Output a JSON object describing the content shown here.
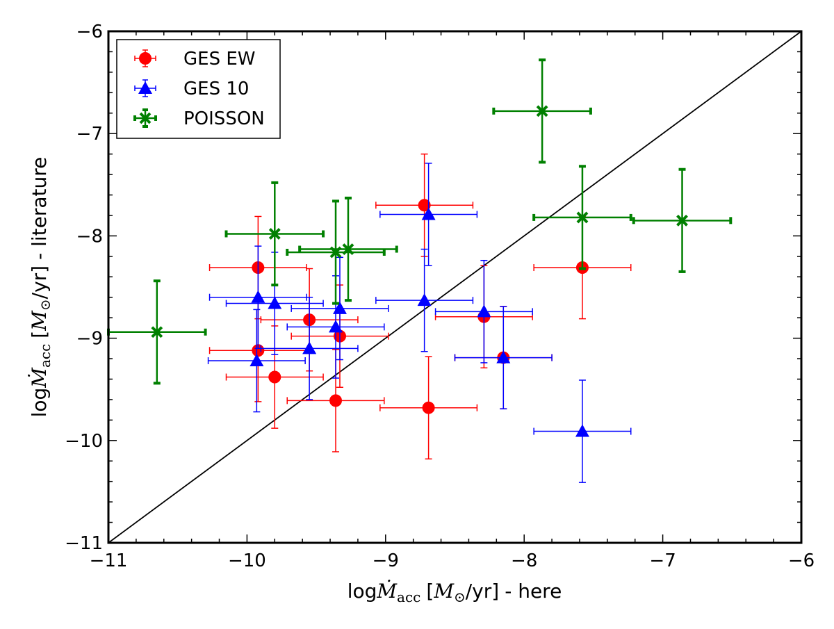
{
  "chart_data": {
    "type": "scatter",
    "title": "",
    "xlabel": {
      "prefix": "log",
      "var": "Ṁ",
      "sub": "acc",
      "bracket_open": "[",
      "unit_var": "M",
      "unit_sub": "⊙",
      "unit_rest": "/yr]",
      "suffix": "- here"
    },
    "ylabel": {
      "prefix": "log",
      "var": "Ṁ",
      "sub": "acc",
      "bracket_open": "[",
      "unit_var": "M",
      "unit_sub": "⊙",
      "unit_rest": "/yr]",
      "suffix": "- literature"
    },
    "xlim": [
      -11,
      -6
    ],
    "ylim": [
      -11,
      -6
    ],
    "xticks": [
      -11,
      -10,
      -9,
      -8,
      -7,
      -6
    ],
    "yticks": [
      -11,
      -10,
      -9,
      -8,
      -7,
      -6
    ],
    "xtick_labels": [
      "−11",
      "−10",
      "−9",
      "−8",
      "−7",
      "−6"
    ],
    "ytick_labels": [
      "−11",
      "−10",
      "−9",
      "−8",
      "−7",
      "−6"
    ],
    "grid": false,
    "legend_position": "top-left",
    "reference_line": {
      "name": "one-to-one",
      "x": [
        -11,
        -6
      ],
      "y": [
        -11,
        -6
      ],
      "color": "#000000"
    },
    "series": [
      {
        "name": "GES EW",
        "color": "#ff0000",
        "marker": "circle",
        "points": [
          {
            "x": -9.92,
            "y": -8.31,
            "xerr": 0.35,
            "yerr": 0.5
          },
          {
            "x": -9.92,
            "y": -9.12,
            "xerr": 0.35,
            "yerr": 0.5
          },
          {
            "x": -9.8,
            "y": -9.38,
            "xerr": 0.35,
            "yerr": 0.5
          },
          {
            "x": -9.55,
            "y": -8.82,
            "xerr": 0.35,
            "yerr": 0.5
          },
          {
            "x": -9.33,
            "y": -8.98,
            "xerr": 0.35,
            "yerr": 0.5
          },
          {
            "x": -9.36,
            "y": -9.61,
            "xerr": 0.35,
            "yerr": 0.5
          },
          {
            "x": -8.72,
            "y": -7.7,
            "xerr": 0.35,
            "yerr": 0.5
          },
          {
            "x": -8.69,
            "y": -9.68,
            "xerr": 0.35,
            "yerr": 0.5
          },
          {
            "x": -8.29,
            "y": -8.79,
            "xerr": 0.35,
            "yerr": 0.5
          },
          {
            "x": -8.15,
            "y": -9.19,
            "xerr": 0.35,
            "yerr": 0.5
          },
          {
            "x": -7.58,
            "y": -8.31,
            "xerr": 0.35,
            "yerr": 0.5
          }
        ]
      },
      {
        "name": "GES 10",
        "color": "#0000ff",
        "marker": "triangle",
        "points": [
          {
            "x": -9.92,
            "y": -8.6,
            "xerr": 0.35,
            "yerr": 0.5
          },
          {
            "x": -9.93,
            "y": -9.22,
            "xerr": 0.35,
            "yerr": 0.5
          },
          {
            "x": -9.8,
            "y": -8.66,
            "xerr": 0.35,
            "yerr": 0.5
          },
          {
            "x": -9.55,
            "y": -9.1,
            "xerr": 0.35,
            "yerr": 0.5
          },
          {
            "x": -9.36,
            "y": -8.89,
            "xerr": 0.35,
            "yerr": 0.5
          },
          {
            "x": -9.33,
            "y": -8.71,
            "xerr": 0.35,
            "yerr": 0.5
          },
          {
            "x": -8.72,
            "y": -8.63,
            "xerr": 0.35,
            "yerr": 0.5
          },
          {
            "x": -8.69,
            "y": -7.79,
            "xerr": 0.35,
            "yerr": 0.5
          },
          {
            "x": -8.29,
            "y": -8.74,
            "xerr": 0.35,
            "yerr": 0.5
          },
          {
            "x": -8.15,
            "y": -9.19,
            "xerr": 0.35,
            "yerr": 0.5
          },
          {
            "x": -7.58,
            "y": -9.91,
            "xerr": 0.35,
            "yerr": 0.5
          }
        ]
      },
      {
        "name": "POISSON",
        "color": "#008000",
        "marker": "x",
        "points": [
          {
            "x": -10.65,
            "y": -8.94,
            "xerr": 0.35,
            "yerr": 0.5
          },
          {
            "x": -9.8,
            "y": -7.98,
            "xerr": 0.35,
            "yerr": 0.5
          },
          {
            "x": -9.36,
            "y": -8.16,
            "xerr": 0.35,
            "yerr": 0.5
          },
          {
            "x": -9.27,
            "y": -8.13,
            "xerr": 0.35,
            "yerr": 0.5
          },
          {
            "x": -7.87,
            "y": -6.78,
            "xerr": 0.35,
            "yerr": 0.5
          },
          {
            "x": -7.58,
            "y": -7.82,
            "xerr": 0.35,
            "yerr": 0.5
          },
          {
            "x": -6.86,
            "y": -7.85,
            "xerr": 0.35,
            "yerr": 0.5
          }
        ]
      }
    ]
  }
}
